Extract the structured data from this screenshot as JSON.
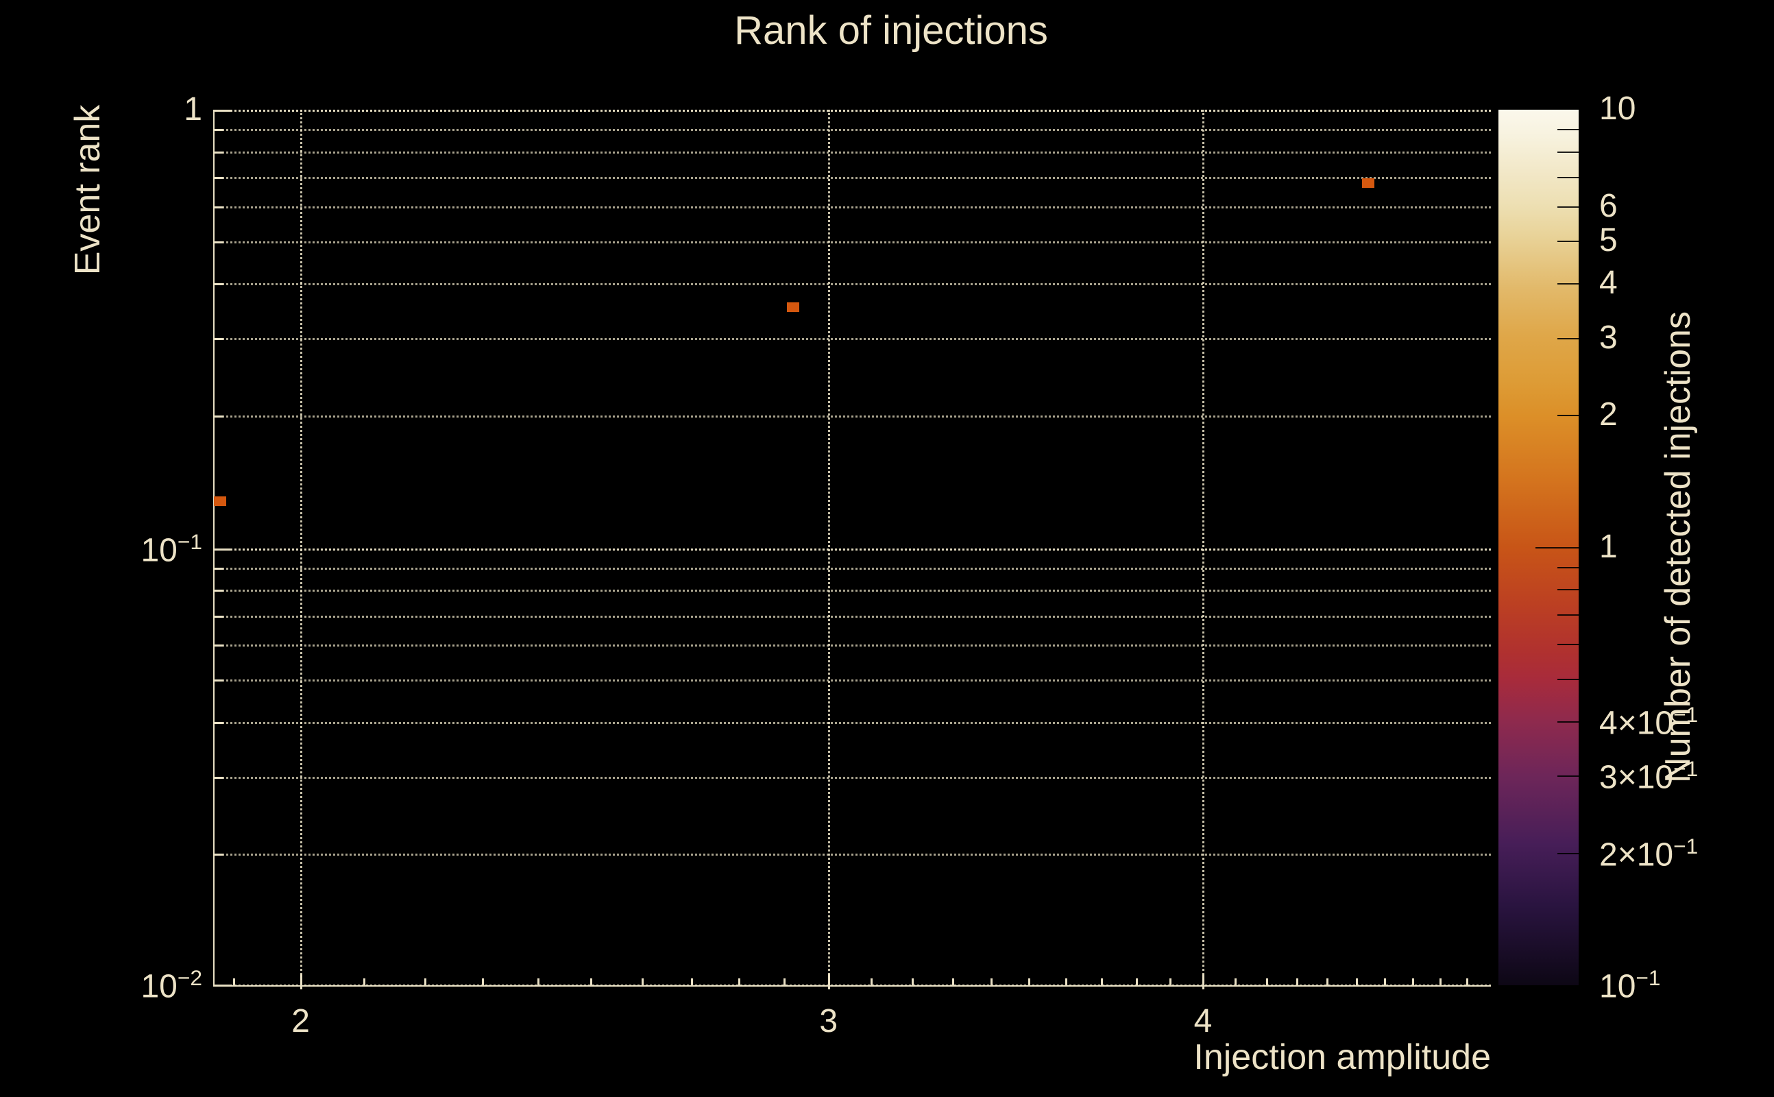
{
  "chart_data": {
    "type": "heatmap",
    "title": "Rank of injections",
    "xlabel": "Injection amplitude",
    "ylabel": "Event rank",
    "colorbar_label": "Number of detected injections",
    "x_scale": "log",
    "y_scale": "log",
    "color_scale": "log",
    "xlim": [
      1.87,
      4.99
    ],
    "ylim": [
      0.01,
      1.0
    ],
    "clim": [
      0.1,
      10
    ],
    "grid": "dotted minor+major gridlines, both axes",
    "legend_position": "colorbar right",
    "background_color": "#000000",
    "text_color": "#EDE3C7",
    "points": [
      {
        "x": 1.88,
        "y": 0.128,
        "count": 1
      },
      {
        "x": 2.92,
        "y": 0.355,
        "count": 1
      },
      {
        "x": 4.54,
        "y": 0.68,
        "count": 1
      }
    ],
    "cell_color": "#D5580F",
    "x_ticks": [
      {
        "v": 2,
        "base": "2"
      },
      {
        "v": 3,
        "base": "3"
      },
      {
        "v": 4,
        "base": "4"
      }
    ],
    "y_ticks": [
      {
        "v": 1,
        "base": "1"
      },
      {
        "v": 0.1,
        "base": "10",
        "sup": "−1"
      },
      {
        "v": 0.01,
        "base": "10",
        "sup": "−2"
      }
    ],
    "colorbar_ticks": [
      {
        "v": 10,
        "base": "10",
        "edge": true
      },
      {
        "v": 6,
        "base": "6"
      },
      {
        "v": 5,
        "base": "5"
      },
      {
        "v": 4,
        "base": "4"
      },
      {
        "v": 3,
        "base": "3"
      },
      {
        "v": 2,
        "base": "2"
      },
      {
        "v": 1,
        "base": "1",
        "major": true
      },
      {
        "v": 0.4,
        "base": "4×10",
        "sup": "−1"
      },
      {
        "v": 0.3,
        "base": "3×10",
        "sup": "−1"
      },
      {
        "v": 0.2,
        "base": "2×10",
        "sup": "−1"
      },
      {
        "v": 0.1,
        "base": "10",
        "sup": "−1",
        "edge": true
      }
    ],
    "colormap_stops": [
      {
        "pos": 0.0,
        "color": "#FBF8EC"
      },
      {
        "pos": 0.031,
        "color": "#F7F2DE"
      },
      {
        "pos": 0.07,
        "color": "#F2E8C8"
      },
      {
        "pos": 0.11,
        "color": "#EDDFB2"
      },
      {
        "pos": 0.141,
        "color": "#E9D49B"
      },
      {
        "pos": 0.204,
        "color": "#E2B96A"
      },
      {
        "pos": 0.258,
        "color": "#DFA749"
      },
      {
        "pos": 0.313,
        "color": "#DD9B35"
      },
      {
        "pos": 0.35,
        "color": "#DC8F28"
      },
      {
        "pos": 0.423,
        "color": "#D4741E"
      },
      {
        "pos": 0.5,
        "color": "#C85517"
      },
      {
        "pos": 0.564,
        "color": "#BC4022"
      },
      {
        "pos": 0.619,
        "color": "#B0312F"
      },
      {
        "pos": 0.65,
        "color": "#A82B3B"
      },
      {
        "pos": 0.697,
        "color": "#8F2A4D"
      },
      {
        "pos": 0.76,
        "color": "#6E2659"
      },
      {
        "pos": 0.838,
        "color": "#471E58"
      },
      {
        "pos": 0.908,
        "color": "#2A1440"
      },
      {
        "pos": 1.0,
        "color": "#0D0715"
      }
    ]
  }
}
